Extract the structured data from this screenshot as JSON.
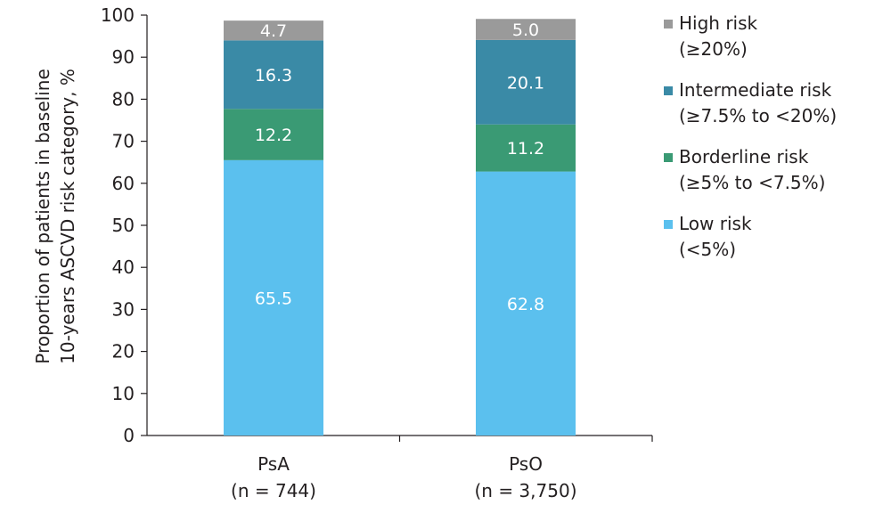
{
  "chart_data": {
    "type": "bar",
    "stacked": true,
    "categories": [
      "PsA",
      "PsO"
    ],
    "category_sublabels": [
      "(n = 744)",
      "(n = 3,750)"
    ],
    "ylabel": "Proportion of patients in baseline 10-years ASCVD risk category, %",
    "ylabel_lines": [
      "Proportion of patients in baseline",
      "10-years ASCVD risk category, %"
    ],
    "ylim": [
      0,
      100
    ],
    "yticks": [
      0,
      10,
      20,
      30,
      40,
      50,
      60,
      70,
      80,
      90,
      100
    ],
    "grid": false,
    "legend_position": "right",
    "series": [
      {
        "name": "Low risk",
        "sublabel": "(<5%)",
        "color": "#5bc0ee",
        "label_color": "#ffffff",
        "values": [
          65.5,
          62.8
        ]
      },
      {
        "name": "Borderline risk",
        "sublabel": "(≥5% to <7.5%)",
        "color": "#3a9a74",
        "label_color": "#ffffff",
        "values": [
          12.2,
          11.2
        ]
      },
      {
        "name": "Intermediate risk",
        "sublabel": "(≥7.5% to <20%)",
        "color": "#3a8aa6",
        "label_color": "#ffffff",
        "values": [
          16.3,
          20.1
        ]
      },
      {
        "name": "High risk",
        "sublabel": "(≥20%)",
        "color": "#9a9a9a",
        "label_color": "#ffffff",
        "values": [
          4.7,
          5.0
        ]
      }
    ]
  }
}
